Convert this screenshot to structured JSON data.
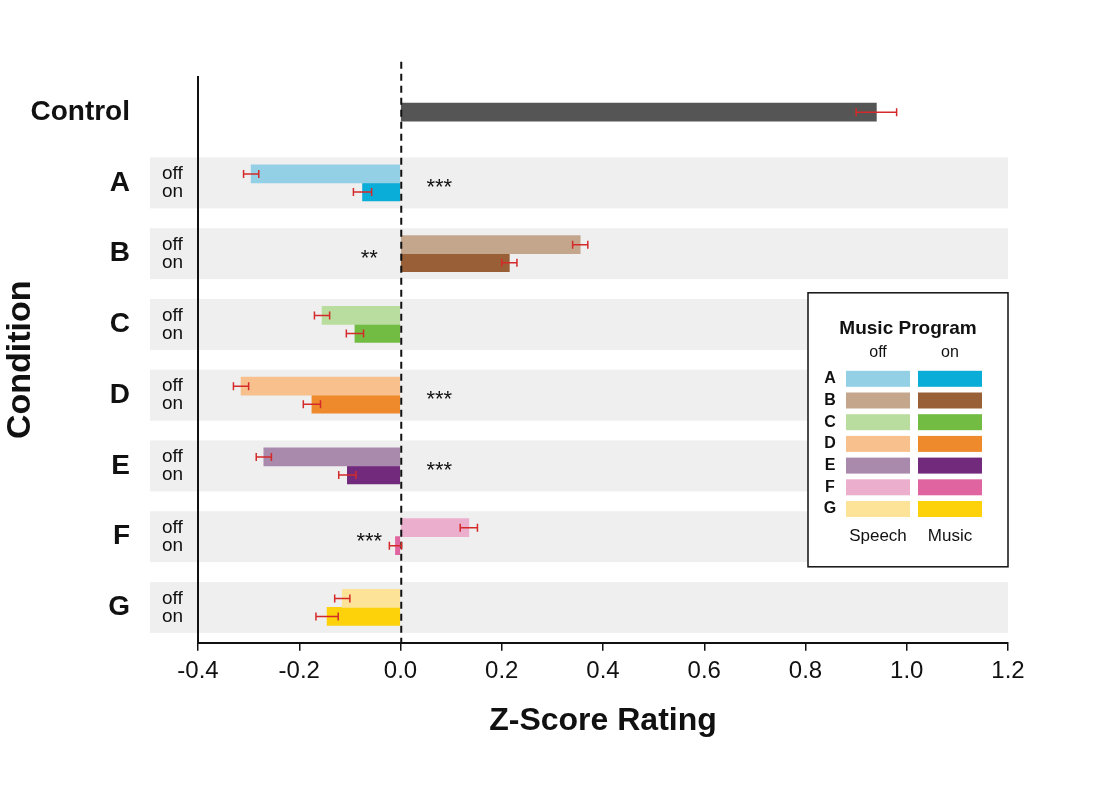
{
  "chart_data": {
    "type": "bar",
    "orientation": "horizontal",
    "xlabel": "Z-Score Rating",
    "ylabel": "Condition",
    "categories": [
      "Control",
      "A",
      "B",
      "C",
      "D",
      "E",
      "F",
      "G"
    ],
    "xlim": [
      -0.4,
      1.2
    ],
    "xticks": [
      -0.4,
      -0.2,
      {
        "value": 0,
        "label": "0.0"
      },
      0.2,
      0.4,
      0.6,
      0.8,
      {
        "value": 1,
        "label": "1.0"
      },
      1.2
    ],
    "grid": false,
    "series": [
      {
        "name": "Control",
        "color": "#555555",
        "values": [
          0.94,
          null,
          null,
          null,
          null,
          null,
          null,
          null
        ],
        "errors": [
          0.04,
          null,
          null,
          null,
          null,
          null,
          null,
          null
        ]
      },
      {
        "name": "off",
        "colors": [
          null,
          "#93d0e6",
          "#c4a68c",
          "#b9dd9e",
          "#f8c08c",
          "#a98aad",
          "#ecaecd",
          "#fde398"
        ],
        "values": [
          null,
          -0.295,
          0.355,
          -0.155,
          -0.315,
          -0.27,
          0.135,
          -0.115
        ],
        "errors": [
          null,
          0.015,
          0.015,
          0.015,
          0.015,
          0.015,
          0.017,
          0.015
        ]
      },
      {
        "name": "on",
        "colors": [
          null,
          "#0aacd8",
          "#996038",
          "#72bc44",
          "#ef8a2c",
          "#722a7c",
          "#e0649f",
          "#fdd20a"
        ],
        "values": [
          null,
          -0.075,
          0.215,
          -0.09,
          -0.175,
          -0.105,
          -0.01,
          -0.145
        ],
        "errors": [
          null,
          0.018,
          0.015,
          0.017,
          0.017,
          0.017,
          0.012,
          0.022
        ]
      }
    ],
    "annotations": [
      {
        "category": "A",
        "text": "***"
      },
      {
        "category": "B",
        "text": "**"
      },
      {
        "category": "D",
        "text": "***"
      },
      {
        "category": "E",
        "text": "***"
      },
      {
        "category": "F",
        "text": "***"
      }
    ],
    "legend_box": {
      "title": "Music Program",
      "columns": [
        "off",
        "on"
      ],
      "footer": [
        "Speech",
        "Music"
      ]
    }
  }
}
